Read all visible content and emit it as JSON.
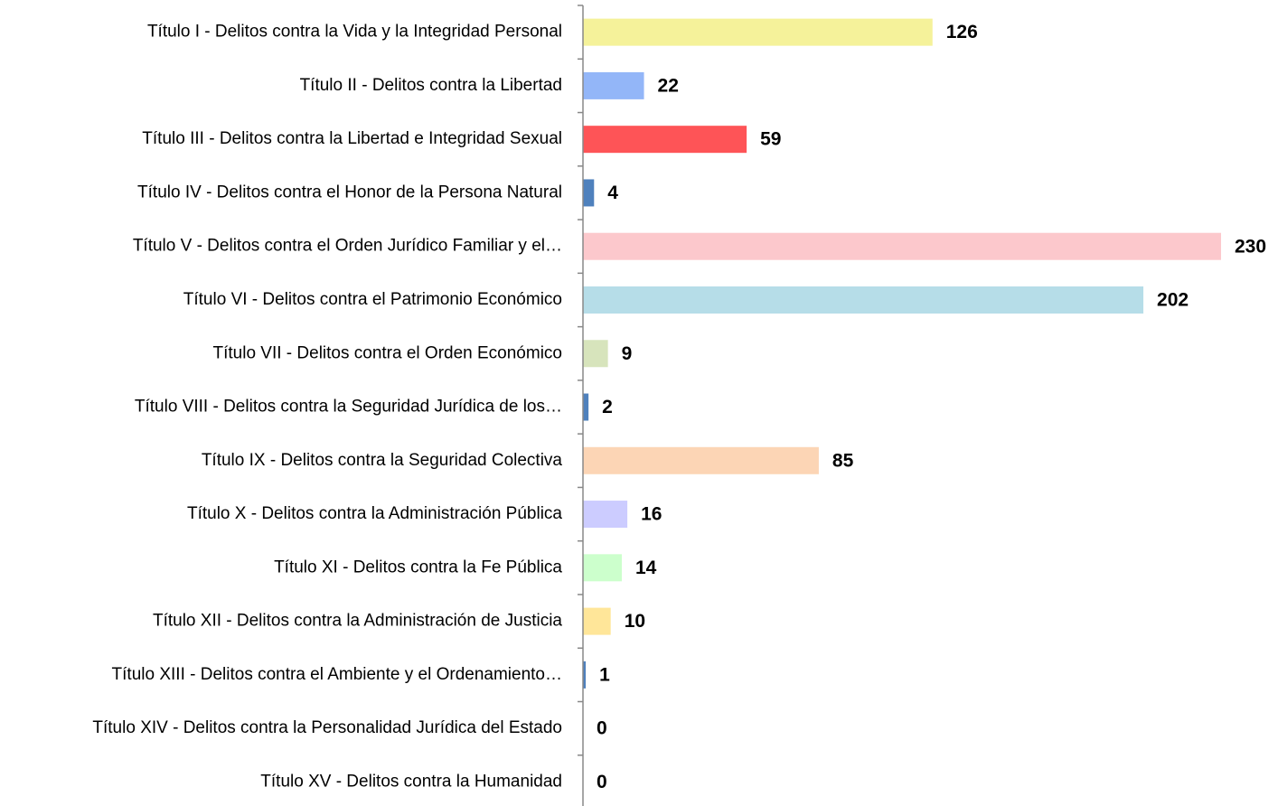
{
  "chart_data": {
    "type": "barh",
    "categories": [
      "Título I - Delitos contra la Vida y la Integridad Personal",
      "Título II - Delitos contra la Libertad",
      "Título III - Delitos contra la Libertad e Integridad Sexual",
      "Título IV - Delitos contra el Honor de la Persona  Natural",
      "Título V - Delitos contra el Orden Jurídico Familiar y el…",
      "Título VI - Delitos contra el Patrimonio Económico",
      "Título VII - Delitos contra el Orden Económico",
      "Título VIII - Delitos  contra la Seguridad Jurídica de los…",
      "Título IX - Delitos contra la Seguridad Colectiva",
      "Título X - Delitos contra la Administración Pública",
      "Título XI - Delitos contra la Fe Pública",
      "Título XII - Delitos contra la Administración de Justicia",
      "Título XIII - Delitos contra el Ambiente y el Ordenamiento…",
      "Título XIV - Delitos contra la Personalidad Jurídica del Estado",
      "Título XV - Delitos contra la Humanidad"
    ],
    "values": [
      126,
      22,
      59,
      4,
      230,
      202,
      9,
      2,
      85,
      16,
      14,
      10,
      1,
      0,
      0
    ],
    "colors": [
      "#f5f29a",
      "#93b6f8",
      "#fe5457",
      "#4f81bd",
      "#fcc8cc",
      "#b6dde8",
      "#d7e4bc",
      "#4f81bd",
      "#fcd5b5",
      "#ccccff",
      "#ccffcc",
      "#ffe699",
      "#4f81bd",
      "#4f81bd",
      "#4f81bd"
    ]
  }
}
